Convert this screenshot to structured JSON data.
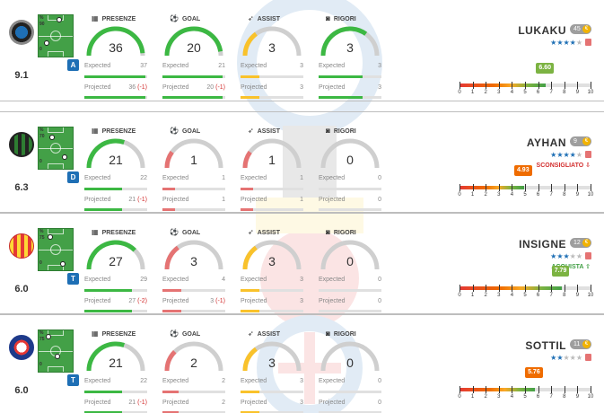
{
  "stat_headers": {
    "presenze": "PRESENZE",
    "goal": "GOAL",
    "assist": "ASSIST",
    "rigori": "RIGORI"
  },
  "labels": {
    "expected": "Expected",
    "projected": "Projected"
  },
  "scale_ticks": [
    "0",
    "1",
    "2",
    "3",
    "4",
    "5",
    "6",
    "7",
    "8",
    "9",
    "10"
  ],
  "colors": {
    "green": "#3cb843",
    "red": "#e57373",
    "yellow": "#f9c22b",
    "grey": "#cfcfcf",
    "role": "#1e6fb5"
  },
  "players": [
    {
      "name": "LUKAKU",
      "quotation": "45",
      "rating": "9.1",
      "role": "A",
      "stars_on": 4,
      "advice": "",
      "advice_color": "",
      "pitch_pct": [
        "%",
        "90",
        "0"
      ],
      "score": "6.60",
      "score_value": 6.6,
      "score_color": "#7cb342",
      "stats": {
        "presenze": {
          "value": "36",
          "expected": "37",
          "projected": "36",
          "delta": "(-1)",
          "ratio": 0.97,
          "color": "#3cb843"
        },
        "goal": {
          "value": "20",
          "expected": "21",
          "projected": "20",
          "delta": "(-1)",
          "ratio": 0.95,
          "color": "#3cb843"
        },
        "assist": {
          "value": "3",
          "expected": "3",
          "projected": "3",
          "delta": "",
          "ratio": 0.3,
          "color": "#f9c22b"
        },
        "rigori": {
          "value": "3",
          "expected": "3",
          "projected": "3",
          "delta": "",
          "ratio": 0.7,
          "color": "#3cb843"
        }
      }
    },
    {
      "name": "AYHAN",
      "quotation": "9",
      "rating": "6.3",
      "role": "D",
      "stars_on": 4,
      "advice": "SCONSIGLIATO ⇩",
      "advice_color": "#d32f2f",
      "pitch_pct": [
        "%",
        "70",
        "0"
      ],
      "score": "4.93",
      "score_value": 4.93,
      "score_color": "#ef6c00",
      "stats": {
        "presenze": {
          "value": "21",
          "expected": "22",
          "projected": "21",
          "delta": "(-1)",
          "ratio": 0.6,
          "color": "#3cb843"
        },
        "goal": {
          "value": "1",
          "expected": "1",
          "projected": "1",
          "delta": "",
          "ratio": 0.2,
          "color": "#e57373"
        },
        "assist": {
          "value": "1",
          "expected": "1",
          "projected": "1",
          "delta": "",
          "ratio": 0.2,
          "color": "#e57373"
        },
        "rigori": {
          "value": "0",
          "expected": "0",
          "projected": "0",
          "delta": "",
          "ratio": 0.0,
          "color": "#cfcfcf"
        }
      }
    },
    {
      "name": "INSIGNE",
      "quotation": "12",
      "rating": "6.0",
      "role": "T",
      "stars_on": 3,
      "advice": "ACQUISTA ⇧",
      "advice_color": "#43a047",
      "pitch_pct": [
        "%",
        "75",
        "0"
      ],
      "score": "7.79",
      "score_value": 7.79,
      "score_color": "#7cb342",
      "stats": {
        "presenze": {
          "value": "27",
          "expected": "29",
          "projected": "27",
          "delta": "(-2)",
          "ratio": 0.75,
          "color": "#3cb843"
        },
        "goal": {
          "value": "3",
          "expected": "4",
          "projected": "3",
          "delta": "(-1)",
          "ratio": 0.3,
          "color": "#e57373"
        },
        "assist": {
          "value": "3",
          "expected": "3",
          "projected": "3",
          "delta": "",
          "ratio": 0.3,
          "color": "#f9c22b"
        },
        "rigori": {
          "value": "0",
          "expected": "0",
          "projected": "0",
          "delta": "",
          "ratio": 0.0,
          "color": "#cfcfcf"
        }
      }
    },
    {
      "name": "SOTTIL",
      "quotation": "11",
      "rating": "6.0",
      "role": "T",
      "stars_on": 2,
      "advice": "",
      "advice_color": "",
      "pitch_pct": [
        "%",
        "75",
        "0"
      ],
      "score": "5.76",
      "score_value": 5.76,
      "score_color": "#ef6c00",
      "stats": {
        "presenze": {
          "value": "21",
          "expected": "22",
          "projected": "21",
          "delta": "(-1)",
          "ratio": 0.6,
          "color": "#3cb843"
        },
        "goal": {
          "value": "2",
          "expected": "2",
          "projected": "2",
          "delta": "",
          "ratio": 0.25,
          "color": "#e57373"
        },
        "assist": {
          "value": "3",
          "expected": "3",
          "projected": "3",
          "delta": "",
          "ratio": 0.3,
          "color": "#f9c22b"
        },
        "rigori": {
          "value": "0",
          "expected": "0",
          "projected": "0",
          "delta": "",
          "ratio": 0.0,
          "color": "#cfcfcf"
        }
      }
    }
  ]
}
